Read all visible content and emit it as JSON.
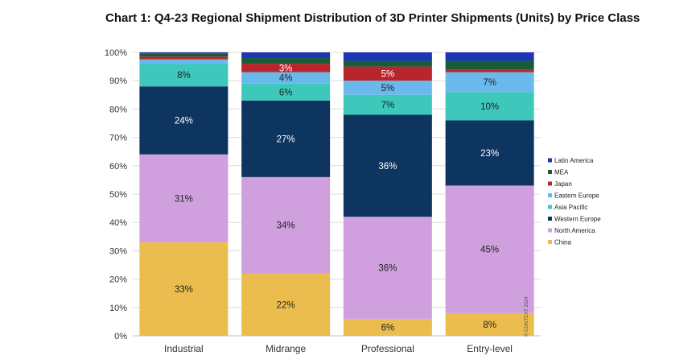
{
  "chart_data": {
    "type": "bar",
    "stacked": true,
    "title": "Chart 1: Q4-23 Regional Shipment Distribution of 3D Printer Shipments (Units) by Price Class",
    "xlabel": "",
    "ylabel": "",
    "ylim": [
      0,
      100
    ],
    "yticks": [
      "0%",
      "10%",
      "20%",
      "30%",
      "40%",
      "50%",
      "60%",
      "70%",
      "80%",
      "90%",
      "100%"
    ],
    "grid": true,
    "legend_position": "right",
    "categories": [
      "Industrial",
      "Midrange",
      "Professional",
      "Entry-level"
    ],
    "series": [
      {
        "name": "China",
        "color": "#ebbd4f",
        "values": [
          33,
          22,
          6,
          8
        ],
        "labels": [
          "33%",
          "22%",
          "6%",
          "8%"
        ]
      },
      {
        "name": "North America",
        "color": "#cf9fde",
        "values": [
          31,
          34,
          36,
          45
        ],
        "labels": [
          "31%",
          "34%",
          "36%",
          "45%"
        ]
      },
      {
        "name": "Western Europe",
        "color": "#0e3460",
        "values": [
          24,
          27,
          36,
          23
        ],
        "labels": [
          "24%",
          "27%",
          "36%",
          "23%"
        ]
      },
      {
        "name": "Asia Pacific",
        "color": "#3ec8bc",
        "values": [
          8,
          6,
          7,
          10
        ],
        "labels": [
          "8%",
          "6%",
          "7%",
          "10%"
        ]
      },
      {
        "name": "Eastern Europe",
        "color": "#6ab9ec",
        "values": [
          1.5,
          4,
          5,
          7
        ],
        "labels": [
          "",
          "4%",
          "5%",
          "7%"
        ]
      },
      {
        "name": "Japan",
        "color": "#b8262d",
        "values": [
          1,
          3,
          5,
          1
        ],
        "labels": [
          "",
          "3%",
          "5%",
          ""
        ]
      },
      {
        "name": "MEA",
        "color": "#175c36",
        "values": [
          1,
          2,
          2,
          3
        ],
        "labels": [
          "",
          "",
          "",
          ""
        ]
      },
      {
        "name": "Latin America",
        "color": "#1f36b3",
        "values": [
          0.5,
          2,
          3,
          3
        ],
        "labels": [
          "",
          "",
          "",
          ""
        ]
      }
    ],
    "credit": "© CONTEXT 2024"
  }
}
